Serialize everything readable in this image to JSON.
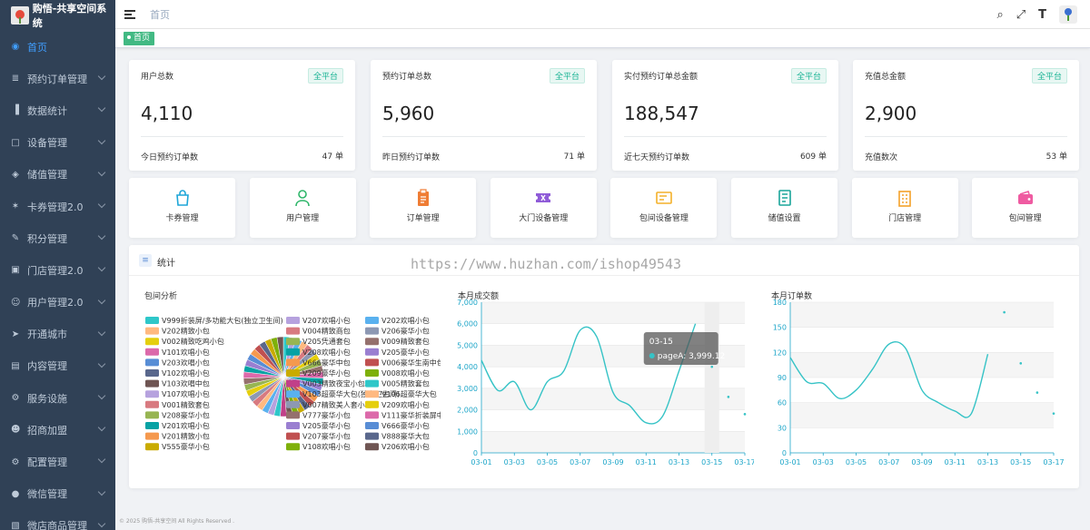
{
  "app": {
    "title": "购悟-共享空间系统"
  },
  "sidebar": {
    "items": [
      {
        "label": "首页",
        "icon": "dashboard-icon",
        "active": true
      },
      {
        "label": "预约订单管理",
        "icon": "order-icon"
      },
      {
        "label": "数据统计",
        "icon": "bar-chart-icon"
      },
      {
        "label": "设备管理",
        "icon": "device-icon"
      },
      {
        "label": "储值管理",
        "icon": "wallet-icon"
      },
      {
        "label": "卡券管理2.0",
        "icon": "ticket-icon"
      },
      {
        "label": "积分管理",
        "icon": "points-icon"
      },
      {
        "label": "门店管理2.0",
        "icon": "store-icon"
      },
      {
        "label": "用户管理2.0",
        "icon": "user-icon"
      },
      {
        "label": "开通城市",
        "icon": "location-icon"
      },
      {
        "label": "内容管理",
        "icon": "content-icon"
      },
      {
        "label": "服务设施",
        "icon": "service-icon"
      },
      {
        "label": "招商加盟",
        "icon": "franchise-icon"
      },
      {
        "label": "配置管理",
        "icon": "settings-icon"
      },
      {
        "label": "微信管理",
        "icon": "wechat-icon"
      },
      {
        "label": "微店商品管理",
        "icon": "shop-icon"
      }
    ]
  },
  "header": {
    "breadcrumb": "首页"
  },
  "tags": {
    "active": "首页"
  },
  "stats": [
    {
      "title": "用户总数",
      "badge": "全平台",
      "value": "4,110",
      "sub_label": "今日预约订单数",
      "sub_value": "47 单"
    },
    {
      "title": "预约订单总数",
      "badge": "全平台",
      "value": "5,960",
      "sub_label": "昨日预约订单数",
      "sub_value": "71 单"
    },
    {
      "title": "实付预约订单总金额",
      "badge": "全平台",
      "value": "188,547",
      "sub_label": "近七天预约订单数",
      "sub_value": "609 单"
    },
    {
      "title": "充值总金额",
      "badge": "全平台",
      "value": "2,900",
      "sub_label": "充值数次",
      "sub_value": "53 单"
    }
  ],
  "quick_links": [
    {
      "label": "卡券管理",
      "icon": "bag-icon",
      "color": "#1ea6d8"
    },
    {
      "label": "用户管理",
      "icon": "person-icon",
      "color": "#2fb66a"
    },
    {
      "label": "订单管理",
      "icon": "clipboard-icon",
      "color": "#ef7d35"
    },
    {
      "label": "大门设备管理",
      "icon": "ticket-icon",
      "color": "#8f5bd8"
    },
    {
      "label": "包间设备管理",
      "icon": "card-icon",
      "color": "#f3b12a"
    },
    {
      "label": "储值设置",
      "icon": "notebook-icon",
      "color": "#1aa59a"
    },
    {
      "label": "门店管理",
      "icon": "building-icon",
      "color": "#f3a12a"
    },
    {
      "label": "包间管理",
      "icon": "wallet-icon",
      "color": "#ef5ba1"
    }
  ],
  "statistics": {
    "title": "统计",
    "watermark": "https://www.huzhan.com/ishop49543",
    "room_chart_title": "包间分析",
    "revenue_chart_title": "本月成交额",
    "orders_chart_title": "本月订单数"
  },
  "chart_data": [
    {
      "type": "pie",
      "title": "包间分析",
      "legend": [
        "V999折装屏/多功能大包(独立卫生间)",
        "V207欢唱小包",
        "V202欢唱小包",
        "V202精致小包",
        "V004精致商包",
        "V206豪华小包",
        "V002精致吃鸡小包",
        "V205凭通套包",
        "V009精致套包",
        "V101欢唱小包",
        "V208欢唱小包",
        "V205豪华小包",
        "V203欢唱小包",
        "V666豪华中包",
        "V006豪华生南中包",
        "V102欢唱小包",
        "V209豪华小包",
        "V008欢唱小包",
        "V103欢唱中包",
        "V003精致夜宝小包",
        "V005精致套包",
        "V107欢唱小包",
        "V103超豪华大包(独立卫生间)",
        "V106超豪华大包",
        "V001精致套包",
        "V007精致美人套小包",
        "V209欢唱小包",
        "V208豪华小包",
        "V777豪华小包",
        "V111豪华折装屏中包",
        "V201欢唱小包",
        "V205豪华小包",
        "V666豪华小包",
        "V201精致小包",
        "V207豪华小包",
        "V888豪华大包",
        "V555豪华小包",
        "V108欢唱小包",
        "V206欢唱小包"
      ],
      "colors": [
        "#2ec7c9",
        "#b6a2de",
        "#5ab1ef",
        "#ffb980",
        "#d87a80",
        "#8d98b3",
        "#e5cf0d",
        "#97b552",
        "#95706d",
        "#dc69aa",
        "#07a2a4",
        "#9a7fd1",
        "#588dd5",
        "#f5994e",
        "#c05050",
        "#59678c",
        "#c9ab00",
        "#7eb00a",
        "#6f5553",
        "#c14089"
      ]
    },
    {
      "type": "line",
      "title": "本月成交额",
      "series": [
        {
          "name": "pageA"
        }
      ],
      "x": [
        "03-01",
        "03-02",
        "03-03",
        "03-04",
        "03-05",
        "03-06",
        "03-07",
        "03-08",
        "03-09",
        "03-10",
        "03-11",
        "03-12",
        "03-13",
        "03-14",
        "03-15",
        "03-16",
        "03-17"
      ],
      "values": [
        4300,
        2900,
        3300,
        2000,
        3300,
        3800,
        5700,
        5400,
        2800,
        2200,
        1400,
        1700,
        3800,
        6000,
        4000,
        2600,
        1800
      ],
      "line_until": 13,
      "x_ticks": [
        "03-01",
        "03-03",
        "03-05",
        "03-07",
        "03-09",
        "03-11",
        "03-13",
        "03-15",
        "03-17"
      ],
      "ylim": [
        0,
        7000
      ],
      "y_ticks": [
        "0",
        "1,000",
        "2,000",
        "3,000",
        "4,000",
        "5,000",
        "6,000",
        "7,000"
      ],
      "tooltip": {
        "date": "03-15",
        "series": "pageA",
        "value": "3,999.12"
      }
    },
    {
      "type": "line",
      "title": "本月订单数",
      "x": [
        "03-01",
        "03-02",
        "03-03",
        "03-04",
        "03-05",
        "03-06",
        "03-07",
        "03-08",
        "03-09",
        "03-10",
        "03-11",
        "03-12",
        "03-13",
        "03-14",
        "03-15",
        "03-16",
        "03-17"
      ],
      "values": [
        114,
        85,
        83,
        65,
        75,
        100,
        130,
        125,
        75,
        60,
        50,
        47,
        118,
        168,
        107,
        72,
        47
      ],
      "line_until": 12,
      "x_ticks": [
        "03-01",
        "03-03",
        "03-05",
        "03-07",
        "03-09",
        "03-11",
        "03-13",
        "03-15",
        "03-17"
      ],
      "ylim": [
        0,
        180
      ],
      "y_ticks": [
        "0",
        "30",
        "60",
        "90",
        "120",
        "150",
        "180"
      ]
    }
  ],
  "footer": {
    "text": "© 2025 购悟-共享空间 All Rights Reserved ."
  }
}
